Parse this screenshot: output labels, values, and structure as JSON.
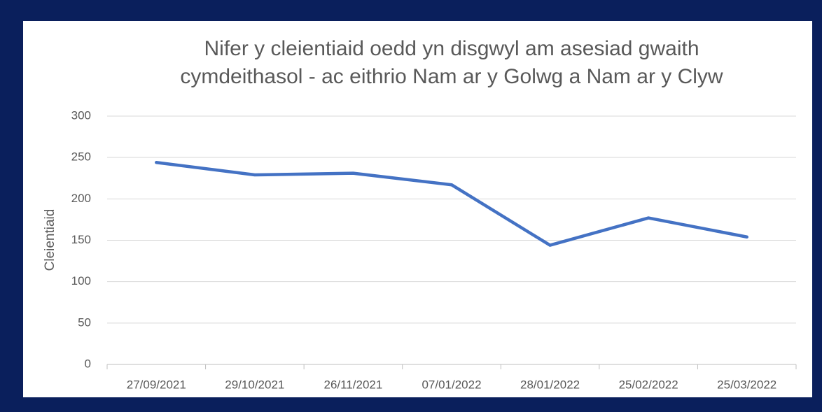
{
  "chart_data": {
    "type": "line",
    "title": "Nifer y cleientiaid oedd yn disgwyl am asesiad gwaith cymdeithasol - ac eithrio Nam ar y Golwg a Nam ar y Clyw",
    "y_label": "Cleientiaid",
    "categories": [
      "27/09/2021",
      "29/10/2021",
      "26/11/2021",
      "07/01/2022",
      "28/01/2022",
      "25/02/2022",
      "25/03/2022"
    ],
    "series": [
      {
        "name": "Cleientiaid",
        "color": "#4472c4",
        "values": [
          244,
          229,
          231,
          217,
          144,
          177,
          154
        ]
      }
    ],
    "ylim": [
      0,
      300
    ],
    "yticks": [
      0,
      50,
      100,
      150,
      200,
      250,
      300
    ],
    "grid": true
  }
}
